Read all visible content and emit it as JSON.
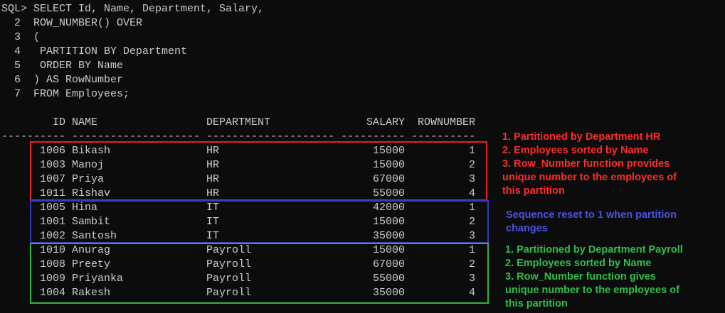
{
  "query_lines": [
    "SQL> SELECT Id, Name, Department, Salary,",
    "  2  ROW_NUMBER() OVER",
    "  3  (",
    "  4   PARTITION BY Department",
    "  5   ORDER BY Name",
    "  6  ) AS RowNumber",
    "  7  FROM Employees;"
  ],
  "table": {
    "columns": [
      "ID",
      "NAME",
      "DEPARTMENT",
      "SALARY",
      "ROWNUMBER"
    ],
    "separator": "---------- -------------------- -------------------- ---------- ----------",
    "rows": [
      [
        1006,
        "Bikash",
        "HR",
        15000,
        1
      ],
      [
        1003,
        "Manoj",
        "HR",
        15000,
        2
      ],
      [
        1007,
        "Priya",
        "HR",
        67000,
        3
      ],
      [
        1011,
        "Rishav",
        "HR",
        55000,
        4
      ],
      [
        1005,
        "Hina",
        "IT",
        42000,
        1
      ],
      [
        1001,
        "Sambit",
        "IT",
        15000,
        2
      ],
      [
        1002,
        "Santosh",
        "IT",
        35000,
        3
      ],
      [
        1010,
        "Anurag",
        "Payroll",
        15000,
        1
      ],
      [
        1008,
        "Preety",
        "Payroll",
        67000,
        2
      ],
      [
        1009,
        "Priyanka",
        "Payroll",
        55000,
        3
      ],
      [
        1004,
        "Rakesh",
        "Payroll",
        35000,
        4
      ]
    ]
  },
  "annotations": {
    "hr": [
      "1. Partitioned by Department HR",
      "2. Employees sorted by Name",
      "3. Row_Number function provides",
      "unique number to the employees of",
      "this partition"
    ],
    "it": [
      "Sequence reset to 1 when partition",
      "changes"
    ],
    "payroll": [
      "1. Partitioned by Department Payroll",
      "2. Employees sorted by Name",
      "3. Row_Number function gives",
      "unique number to the employees of",
      "this partition"
    ]
  }
}
